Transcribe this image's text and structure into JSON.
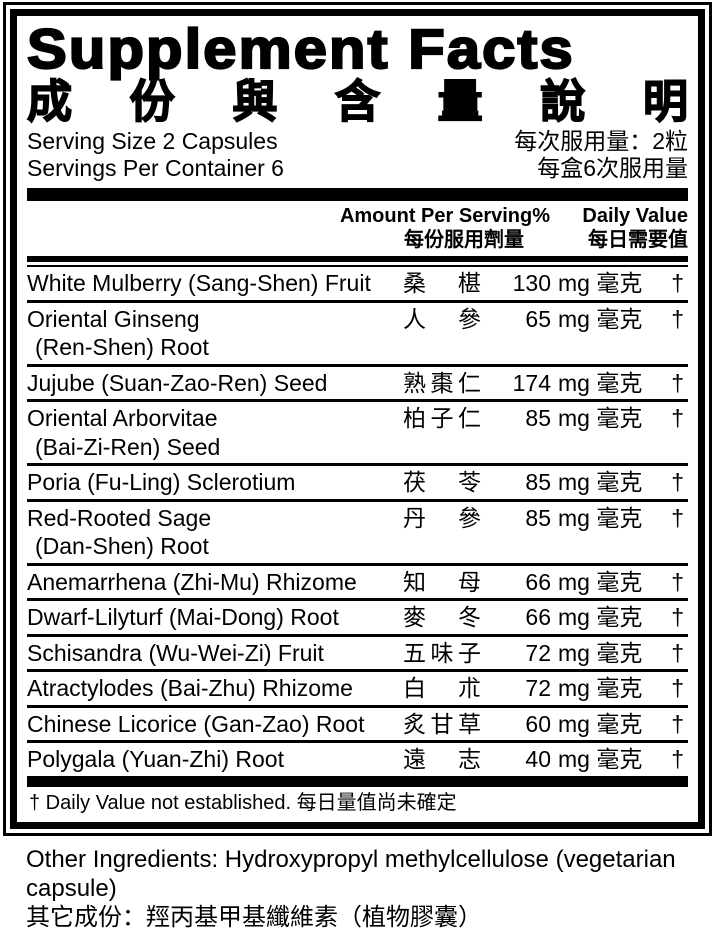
{
  "title": "Supplement Facts",
  "title_zh": "成份與含量說明",
  "serving": {
    "size_en": "Serving Size 2 Capsules",
    "size_zh": "每次服用量：2粒",
    "per_container_en": "Servings Per Container 6",
    "per_container_zh": "每盒6次服用量"
  },
  "columns": {
    "amount_en": "Amount Per Serving%",
    "amount_zh": "每份服用劑量",
    "dv_en": "Daily Value",
    "dv_zh": "每日需要值"
  },
  "rows": [
    {
      "name_en": "White Mulberry (Sang-Shen) Fruit",
      "name_en2": "",
      "name_zh": "桑椹",
      "amount": "130",
      "unit": "mg 毫克",
      "daily_value": "†"
    },
    {
      "name_en": "Oriental Ginseng",
      "name_en2": "(Ren-Shen) Root",
      "name_zh": "人參",
      "amount": "65",
      "unit": "mg 毫克",
      "daily_value": "†"
    },
    {
      "name_en": "Jujube (Suan-Zao-Ren) Seed",
      "name_en2": "",
      "name_zh": "熟棗仁",
      "amount": "174",
      "unit": "mg 毫克",
      "daily_value": "†"
    },
    {
      "name_en": "Oriental Arborvitae",
      "name_en2": "(Bai-Zi-Ren) Seed",
      "name_zh": "柏子仁",
      "amount": "85",
      "unit": "mg 毫克",
      "daily_value": "†"
    },
    {
      "name_en": "Poria (Fu-Ling) Sclerotium",
      "name_en2": "",
      "name_zh": "茯苓",
      "amount": "85",
      "unit": "mg 毫克",
      "daily_value": "†"
    },
    {
      "name_en": "Red-Rooted Sage",
      "name_en2": "(Dan-Shen) Root",
      "name_zh": "丹參",
      "amount": "85",
      "unit": "mg 毫克",
      "daily_value": "†"
    },
    {
      "name_en": "Anemarrhena (Zhi-Mu) Rhizome",
      "name_en2": "",
      "name_zh": "知母",
      "amount": "66",
      "unit": "mg 毫克",
      "daily_value": "†"
    },
    {
      "name_en": "Dwarf-Lilyturf (Mai-Dong) Root",
      "name_en2": "",
      "name_zh": "麥冬",
      "amount": "66",
      "unit": "mg 毫克",
      "daily_value": "†"
    },
    {
      "name_en": "Schisandra (Wu-Wei-Zi) Fruit",
      "name_en2": "",
      "name_zh": "五味子",
      "amount": "72",
      "unit": "mg 毫克",
      "daily_value": "†"
    },
    {
      "name_en": "Atractylodes (Bai-Zhu) Rhizome",
      "name_en2": "",
      "name_zh": "白朮",
      "amount": "72",
      "unit": "mg 毫克",
      "daily_value": "†"
    },
    {
      "name_en": "Chinese Licorice (Gan-Zao) Root",
      "name_en2": "",
      "name_zh": "炙甘草",
      "amount": "60",
      "unit": "mg 毫克",
      "daily_value": "†"
    },
    {
      "name_en": "Polygala (Yuan-Zhi) Root",
      "name_en2": "",
      "name_zh": "遠志",
      "amount": "40",
      "unit": "mg 毫克",
      "daily_value": "†"
    }
  ],
  "footnote": "† Daily Value not established. 每日量值尚未確定",
  "other_ingredients": {
    "en": "Other Ingredients: Hydroxypropyl methylcellulose (vegetarian capsule)",
    "zh": "其它成份：羥丙基甲基纖維素（植物膠囊）"
  },
  "colors": {
    "ink": "#000000",
    "background": "#ffffff"
  }
}
